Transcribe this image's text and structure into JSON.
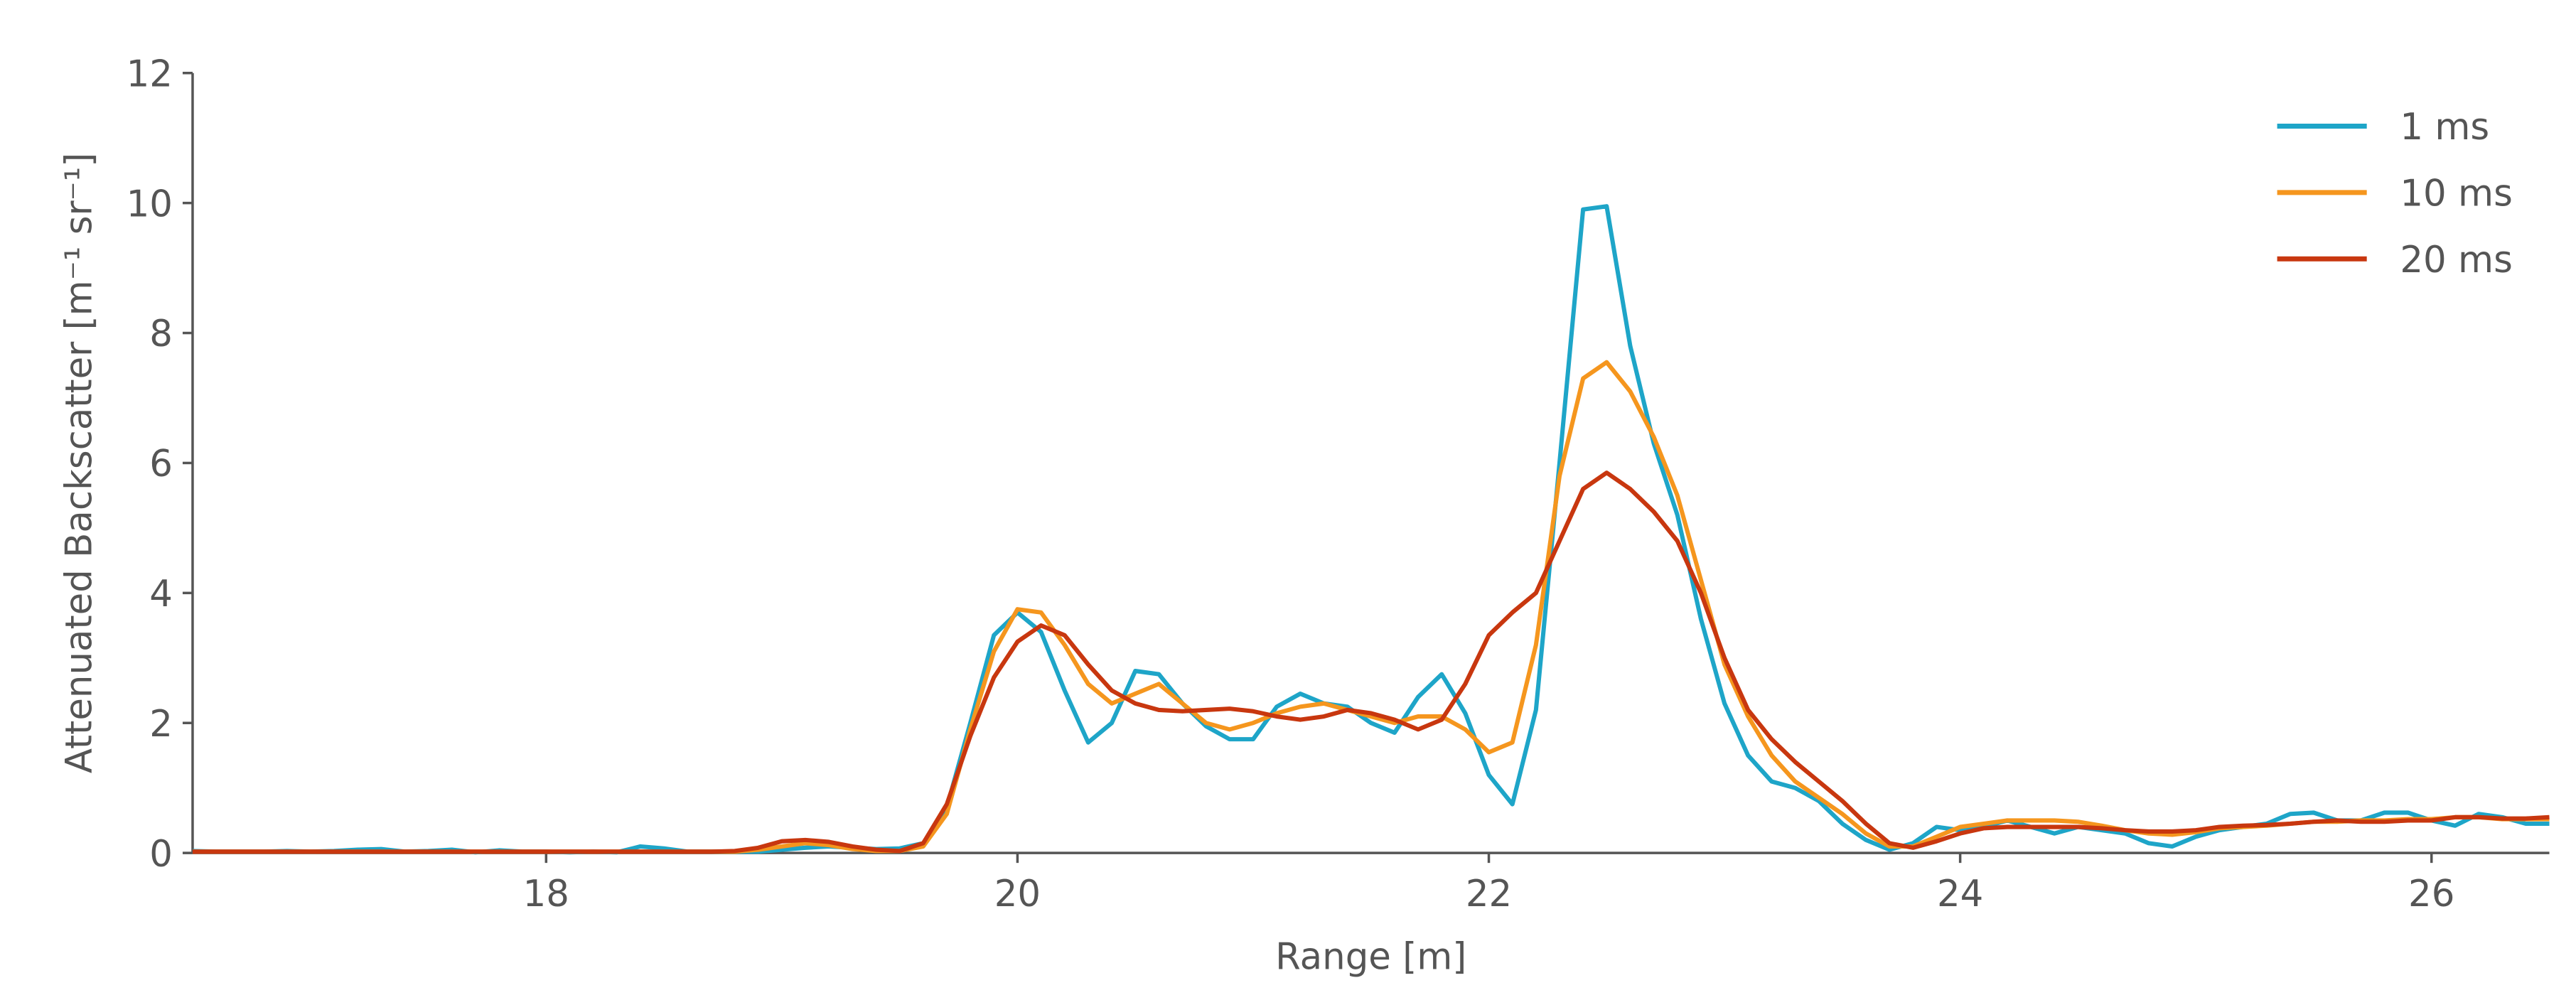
{
  "chart_data": {
    "type": "line",
    "xlabel": "Range [m]",
    "ylabel": "Attenuated Backscatter [m⁻¹ sr⁻¹]",
    "x": [
      16.5,
      16.6,
      16.7,
      16.8,
      16.9,
      17.0,
      17.1,
      17.2,
      17.3,
      17.4,
      17.5,
      17.6,
      17.7,
      17.8,
      17.9,
      18.0,
      18.1,
      18.2,
      18.3,
      18.4,
      18.5,
      18.6,
      18.7,
      18.8,
      18.9,
      19.0,
      19.1,
      19.2,
      19.3,
      19.4,
      19.5,
      19.6,
      19.7,
      19.8,
      19.9,
      20.0,
      20.1,
      20.2,
      20.3,
      20.4,
      20.5,
      20.6,
      20.7,
      20.8,
      20.9,
      21.0,
      21.1,
      21.2,
      21.3,
      21.4,
      21.5,
      21.6,
      21.7,
      21.8,
      21.9,
      22.0,
      22.1,
      22.2,
      22.3,
      22.4,
      22.5,
      22.6,
      22.7,
      22.8,
      22.9,
      23.0,
      23.1,
      23.2,
      23.3,
      23.4,
      23.5,
      23.6,
      23.7,
      23.8,
      23.9,
      24.0,
      24.1,
      24.2,
      24.3,
      24.4,
      24.5,
      24.6,
      24.7,
      24.8,
      24.9,
      25.0,
      25.1,
      25.2,
      25.3,
      25.4,
      25.5,
      25.6,
      25.7,
      25.8,
      25.9,
      26.0,
      26.1,
      26.2,
      26.3,
      26.4,
      26.5
    ],
    "series": [
      {
        "name": "1 ms",
        "color": "#1ea5c8",
        "values": [
          0.03,
          0.02,
          0.02,
          0.02,
          0.03,
          0.02,
          0.03,
          0.05,
          0.06,
          0.02,
          0.03,
          0.05,
          0.01,
          0.04,
          0.02,
          0.02,
          0.01,
          0.02,
          0.01,
          0.1,
          0.07,
          0.02,
          0.02,
          0.02,
          0.02,
          0.05,
          0.08,
          0.1,
          0.08,
          0.06,
          0.07,
          0.15,
          0.7,
          2.0,
          3.35,
          3.7,
          3.4,
          2.5,
          1.7,
          2.0,
          2.8,
          2.75,
          2.3,
          1.95,
          1.75,
          1.75,
          2.25,
          2.45,
          2.3,
          2.25,
          2.0,
          1.85,
          2.4,
          2.75,
          2.15,
          1.2,
          0.75,
          2.2,
          6.0,
          9.9,
          9.95,
          7.8,
          6.3,
          5.2,
          3.6,
          2.3,
          1.5,
          1.1,
          1.0,
          0.8,
          0.45,
          0.2,
          0.05,
          0.15,
          0.4,
          0.35,
          0.4,
          0.5,
          0.4,
          0.3,
          0.4,
          0.35,
          0.3,
          0.15,
          0.1,
          0.25,
          0.35,
          0.4,
          0.45,
          0.6,
          0.62,
          0.5,
          0.5,
          0.62,
          0.62,
          0.5,
          0.42,
          0.6,
          0.55,
          0.45,
          0.45
        ]
      },
      {
        "name": "10 ms",
        "color": "#f5961e",
        "values": [
          0.02,
          0.02,
          0.02,
          0.02,
          0.02,
          0.02,
          0.02,
          0.02,
          0.02,
          0.02,
          0.02,
          0.02,
          0.02,
          0.02,
          0.02,
          0.02,
          0.02,
          0.02,
          0.02,
          0.02,
          0.02,
          0.02,
          0.02,
          0.02,
          0.05,
          0.1,
          0.15,
          0.12,
          0.06,
          0.03,
          0.03,
          0.1,
          0.6,
          1.9,
          3.1,
          3.75,
          3.7,
          3.2,
          2.6,
          2.3,
          2.45,
          2.6,
          2.3,
          2.0,
          1.9,
          2.0,
          2.15,
          2.25,
          2.3,
          2.2,
          2.1,
          2.0,
          2.1,
          2.1,
          1.9,
          1.55,
          1.7,
          3.2,
          5.8,
          7.3,
          7.55,
          7.1,
          6.4,
          5.5,
          4.2,
          2.9,
          2.1,
          1.5,
          1.1,
          0.85,
          0.6,
          0.3,
          0.1,
          0.1,
          0.25,
          0.4,
          0.45,
          0.5,
          0.5,
          0.5,
          0.48,
          0.42,
          0.35,
          0.3,
          0.28,
          0.32,
          0.38,
          0.4,
          0.42,
          0.45,
          0.48,
          0.48,
          0.5,
          0.5,
          0.52,
          0.52,
          0.55,
          0.55,
          0.52,
          0.52,
          0.52
        ]
      },
      {
        "name": "20 ms",
        "color": "#c8370f",
        "values": [
          0.02,
          0.02,
          0.02,
          0.02,
          0.02,
          0.02,
          0.02,
          0.02,
          0.02,
          0.02,
          0.02,
          0.02,
          0.02,
          0.02,
          0.02,
          0.02,
          0.02,
          0.02,
          0.02,
          0.02,
          0.02,
          0.02,
          0.02,
          0.03,
          0.08,
          0.18,
          0.2,
          0.17,
          0.1,
          0.05,
          0.03,
          0.15,
          0.75,
          1.8,
          2.7,
          3.25,
          3.5,
          3.35,
          2.9,
          2.5,
          2.3,
          2.2,
          2.18,
          2.2,
          2.22,
          2.18,
          2.1,
          2.05,
          2.1,
          2.2,
          2.15,
          2.05,
          1.9,
          2.05,
          2.6,
          3.35,
          3.7,
          4.0,
          4.8,
          5.6,
          5.85,
          5.6,
          5.25,
          4.8,
          4.0,
          3.0,
          2.2,
          1.75,
          1.4,
          1.1,
          0.8,
          0.45,
          0.15,
          0.08,
          0.18,
          0.3,
          0.38,
          0.4,
          0.4,
          0.4,
          0.4,
          0.38,
          0.35,
          0.33,
          0.33,
          0.35,
          0.4,
          0.42,
          0.43,
          0.45,
          0.48,
          0.5,
          0.48,
          0.48,
          0.5,
          0.5,
          0.55,
          0.55,
          0.53,
          0.53,
          0.55
        ]
      }
    ],
    "xlim": [
      16.5,
      26.5
    ],
    "xticks": [
      18,
      20,
      22,
      24,
      26
    ],
    "ylim": [
      0,
      12
    ],
    "yticks": [
      0,
      2,
      4,
      6,
      8,
      10,
      12
    ],
    "legend": "upper right",
    "grid": false
  }
}
